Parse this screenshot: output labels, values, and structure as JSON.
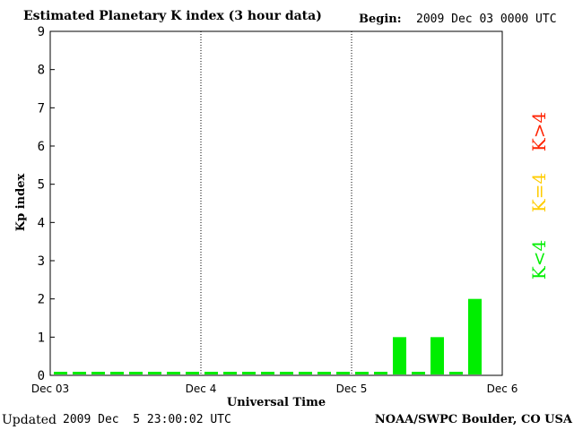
{
  "header": {
    "title": "Estimated Planetary K index (3 hour data)",
    "begin_label": "Begin:",
    "begin_value": "2009 Dec 03 0000 UTC"
  },
  "footer": {
    "updated_label": "Updated",
    "updated_value": "2009 Dec  5 23:00:02 UTC",
    "credit": "NOAA/SWPC Boulder, CO USA"
  },
  "colors": {
    "low": "#00ee00",
    "mid": "#ffcc00",
    "high": "#ff2200"
  },
  "legend": {
    "low": "K<4",
    "mid": "K=4",
    "high": "K>4"
  },
  "chart_data": {
    "type": "bar",
    "title": "Estimated Planetary K index (3 hour data)",
    "xlabel": "Universal Time",
    "ylabel": "Kp index",
    "ylim": [
      0,
      9
    ],
    "yticks": [
      "0",
      "1",
      "2",
      "3",
      "4",
      "5",
      "6",
      "7",
      "8",
      "9"
    ],
    "xticks": [
      "Dec 03",
      "Dec 4",
      "Dec 5",
      "Dec 6"
    ],
    "grid": "vertical dotted lines at day boundaries",
    "interval_hours": 3,
    "values": [
      0,
      0,
      0,
      0,
      0,
      0,
      0,
      0,
      0,
      0,
      0,
      0,
      0,
      0,
      0,
      0,
      0,
      0,
      1,
      0,
      1,
      0,
      2
    ]
  }
}
